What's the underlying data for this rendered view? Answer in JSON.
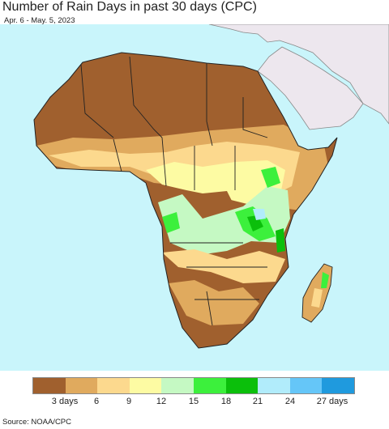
{
  "title": "Number of Rain Days in past 30 days (CPC)",
  "subtitle": "Apr. 6 - May. 5, 2023",
  "source": "Source: NOAA/CPC",
  "colors": {
    "ocean": "#c9f5fb",
    "non_data_land": "#ede7ee",
    "border": "#222222",
    "admin_border": "#8e8e9a"
  },
  "legend": {
    "bins": [
      {
        "color": "#a0602e",
        "upper": 3
      },
      {
        "color": "#e0aa5e",
        "upper": 6
      },
      {
        "color": "#fcd98e",
        "upper": 9
      },
      {
        "color": "#fdfba3",
        "upper": 12
      },
      {
        "color": "#c5f9c3",
        "upper": 15
      },
      {
        "color": "#3cf03c",
        "upper": 18
      },
      {
        "color": "#0bbf0b",
        "upper": 21
      },
      {
        "color": "#b1ecfb",
        "upper": 24
      },
      {
        "color": "#65c6f8",
        "upper": 27
      },
      {
        "color": "#1f9ade",
        "upper": 30
      }
    ],
    "ticks": [
      "3 days",
      "6",
      "9",
      "12",
      "15",
      "18",
      "21",
      "24",
      "27 days"
    ]
  }
}
